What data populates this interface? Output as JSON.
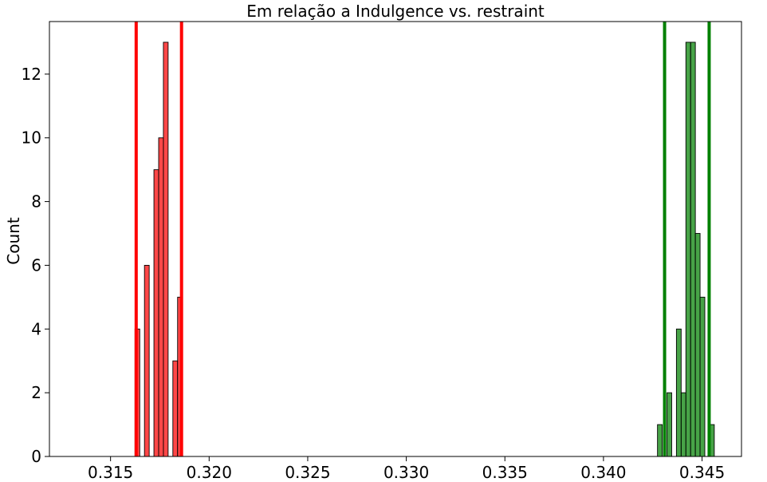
{
  "chart_data": {
    "type": "bar",
    "title": "Em relação a Indulgence vs. restraint",
    "xlabel": "",
    "ylabel": "Count",
    "xlim": [
      0.3119,
      0.347
    ],
    "ylim": [
      0,
      13.65
    ],
    "grid": false,
    "x_ticks": [
      {
        "value": 0.315,
        "label": "0.315"
      },
      {
        "value": 0.32,
        "label": "0.320"
      },
      {
        "value": 0.325,
        "label": "0.325"
      },
      {
        "value": 0.33,
        "label": "0.330"
      },
      {
        "value": 0.335,
        "label": "0.335"
      },
      {
        "value": 0.34,
        "label": "0.340"
      },
      {
        "value": 0.345,
        "label": "0.345"
      }
    ],
    "y_ticks": [
      {
        "value": 0,
        "label": "0"
      },
      {
        "value": 2,
        "label": "2"
      },
      {
        "value": 4,
        "label": "4"
      },
      {
        "value": 6,
        "label": "6"
      },
      {
        "value": 8,
        "label": "8"
      },
      {
        "value": 10,
        "label": "10"
      },
      {
        "value": 12,
        "label": "12"
      }
    ],
    "series": [
      {
        "color": "#ff0000",
        "bin_edges": [
          0.31624,
          0.31648,
          0.31672,
          0.31696,
          0.3172,
          0.31744,
          0.31768,
          0.31792,
          0.31816,
          0.3184,
          0.31864
        ],
        "counts": [
          4,
          0,
          6,
          0,
          9,
          10,
          13,
          0,
          3,
          5
        ]
      },
      {
        "color": "#008000",
        "bin_edges": [
          0.34274,
          0.34298,
          0.34322,
          0.34346,
          0.3437,
          0.34394,
          0.34418,
          0.34442,
          0.34466,
          0.3449,
          0.34514,
          0.34538,
          0.34562,
          0.34586
        ],
        "counts": [
          1,
          0,
          2,
          0,
          4,
          2,
          13,
          13,
          7,
          5,
          0,
          1,
          0
        ]
      }
    ],
    "vertical_lines": [
      {
        "x": 0.3163,
        "color": "#ff0000"
      },
      {
        "x": 0.3186,
        "color": "#ff0000"
      },
      {
        "x": 0.3431,
        "color": "#008000"
      },
      {
        "x": 0.34536,
        "color": "#008000"
      }
    ]
  }
}
